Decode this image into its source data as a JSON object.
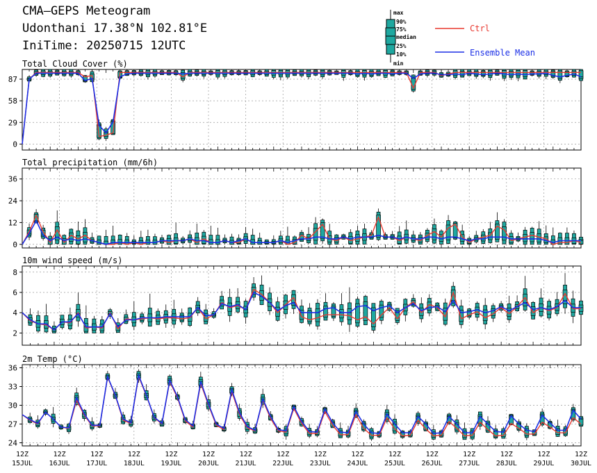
{
  "header": {
    "title": "CMA—GEPS Meteogram",
    "location": "Udonthani 17.38°N 102.81°E",
    "init_time": "IniTime: 20250715 12UTC"
  },
  "legend": {
    "box_labels": [
      "max",
      "90%",
      "75%",
      "median",
      "25%",
      "10%",
      "min"
    ],
    "ctrl": "Ctrl",
    "mean": "Ensemble Mean",
    "ctrl_color": "#e8382f",
    "mean_color": "#1a2ee6",
    "box_color": "#1fa8a0"
  },
  "x_axis": {
    "hour_labels": [
      "12Z",
      "12Z",
      "12Z",
      "12Z",
      "12Z",
      "12Z",
      "12Z",
      "12Z",
      "12Z",
      "12Z",
      "12Z",
      "12Z",
      "12Z",
      "12Z",
      "12Z",
      "12Z"
    ],
    "day_labels": [
      "15JUL",
      "16JUL",
      "17JUL",
      "18JUL",
      "19JUL",
      "20JUL",
      "21JUL",
      "22JUL",
      "23JUL",
      "24JUL",
      "25JUL",
      "26JUL",
      "27JUL",
      "28JUL",
      "29JUL",
      "30JUL"
    ]
  },
  "chart_data": [
    {
      "type": "box",
      "title": "Total Cloud Cover (%)",
      "ylim": [
        -8,
        100
      ],
      "yticks": [
        0,
        29,
        58,
        87
      ],
      "x_start": "2025-07-15 12Z",
      "x_step": "6h",
      "ctrl": [
        0,
        87,
        96,
        96,
        96,
        96,
        96,
        96,
        96,
        90,
        92,
        10,
        12,
        15,
        96,
        96,
        96,
        96,
        96,
        96,
        96,
        96,
        96,
        90,
        96,
        96,
        96,
        96,
        96,
        96,
        96,
        96,
        96,
        96,
        96,
        96,
        96,
        96,
        96,
        96,
        96,
        96,
        96,
        96,
        96,
        96,
        96,
        96,
        96,
        96,
        96,
        96,
        96,
        96,
        96,
        96,
        75,
        96,
        96,
        96,
        92,
        94,
        96,
        96,
        96,
        96,
        96,
        96,
        96,
        96,
        96,
        96,
        96,
        96,
        96,
        96,
        96,
        96,
        96,
        96,
        96
      ],
      "mean": [
        0,
        87,
        95,
        95,
        95,
        95,
        95,
        95,
        95,
        85,
        88,
        25,
        15,
        30,
        90,
        94,
        95,
        95,
        95,
        95,
        95,
        95,
        95,
        94,
        95,
        95,
        95,
        95,
        95,
        95,
        95,
        95,
        95,
        95,
        95,
        95,
        95,
        95,
        95,
        95,
        95,
        95,
        95,
        95,
        95,
        95,
        95,
        95,
        94,
        95,
        94,
        95,
        95,
        94,
        95,
        95,
        88,
        94,
        95,
        95,
        93,
        93,
        94,
        93,
        95,
        94,
        93,
        94,
        95,
        94,
        93,
        94,
        93,
        94,
        94,
        95,
        92,
        90,
        92,
        94,
        90
      ]
    },
    {
      "type": "box",
      "title": "Total precipitation (mm/6h)",
      "ylim": [
        -2,
        42
      ],
      "yticks": [
        0,
        12,
        24,
        36
      ],
      "x_start": "2025-07-15 12Z",
      "x_step": "6h",
      "ctrl": [
        0,
        7,
        16,
        7,
        1,
        8,
        1,
        5,
        3,
        5,
        2,
        1,
        0,
        0,
        1,
        0,
        1,
        0,
        1,
        1,
        2,
        1,
        2,
        2,
        3,
        1,
        3,
        1,
        1,
        2,
        1,
        1,
        3,
        1,
        1,
        1,
        1,
        2,
        0,
        1,
        5,
        3,
        7,
        11,
        3,
        2,
        4,
        2,
        3,
        4,
        5,
        15,
        4,
        4,
        2,
        4,
        3,
        2,
        5,
        7,
        4,
        9,
        11,
        4,
        1,
        3,
        4,
        5,
        10,
        8,
        2,
        3,
        4,
        5,
        4,
        3,
        0,
        1,
        1,
        2,
        1
      ],
      "mean": [
        0,
        6,
        13,
        5,
        2,
        4,
        2,
        3,
        2,
        3,
        2,
        1,
        0,
        1,
        1,
        1,
        1,
        1,
        1,
        1,
        2,
        2,
        2,
        2,
        3,
        2,
        2,
        1,
        1,
        2,
        1,
        2,
        3,
        1,
        1,
        1,
        1,
        2,
        1,
        2,
        3,
        3,
        4,
        4,
        3,
        3,
        4,
        3,
        4,
        4,
        4,
        5,
        4,
        4,
        3,
        4,
        3,
        3,
        4,
        4,
        3,
        4,
        4,
        3,
        2,
        3,
        3,
        4,
        4,
        4,
        3,
        3,
        3,
        3,
        3,
        2,
        1,
        2,
        2,
        2,
        2
      ]
    },
    {
      "type": "box",
      "title": "10m wind speed (m/s)",
      "ylim": [
        0.8,
        8.6
      ],
      "yticks": [
        2,
        4,
        6,
        8
      ],
      "x_start": "2025-07-15 12Z",
      "x_step": "6h",
      "ctrl": [
        4.0,
        3.2,
        2.9,
        2.8,
        2.3,
        3.1,
        3.0,
        4.0,
        2.5,
        2.6,
        2.5,
        4.0,
        2.4,
        3.4,
        3.3,
        3.4,
        3.5,
        3.4,
        3.5,
        3.5,
        3.4,
        3.5,
        4.5,
        3.4,
        3.8,
        5.0,
        4.5,
        4.7,
        4.3,
        6.3,
        5.8,
        5.0,
        4.0,
        4.8,
        5.5,
        3.6,
        3.3,
        3.5,
        3.8,
        3.8,
        3.8,
        3.7,
        3.3,
        3.6,
        2.9,
        3.8,
        4.5,
        3.4,
        4.5,
        5.1,
        4.0,
        4.8,
        4.5,
        3.6,
        6.0,
        3.4,
        3.8,
        4.1,
        3.5,
        3.9,
        4.5,
        3.9,
        4.6,
        5.5,
        4.0,
        4.5,
        4.2,
        4.5,
        5.9,
        4.4,
        4.4
      ],
      "mean": [
        4.0,
        3.3,
        2.9,
        2.9,
        2.3,
        3.1,
        3.1,
        3.9,
        2.6,
        2.6,
        2.6,
        3.9,
        2.6,
        3.3,
        3.3,
        3.5,
        3.5,
        3.5,
        3.6,
        3.6,
        3.6,
        3.6,
        4.5,
        3.7,
        3.8,
        4.9,
        4.6,
        4.8,
        4.3,
        6.0,
        5.6,
        5.0,
        4.2,
        4.7,
        5.0,
        4.0,
        4.0,
        4.0,
        4.4,
        4.5,
        4.0,
        4.0,
        4.6,
        4.7,
        4.2,
        4.5,
        4.7,
        4.0,
        4.5,
        4.9,
        4.2,
        4.5,
        4.6,
        4.1,
        5.2,
        4.0,
        4.1,
        4.3,
        4.0,
        4.2,
        4.6,
        4.2,
        4.6,
        5.0,
        4.3,
        4.5,
        4.3,
        4.6,
        5.2,
        4.5,
        4.5
      ]
    },
    {
      "type": "box",
      "title": "2m Temp (°C)",
      "ylim": [
        23.5,
        36.5
      ],
      "yticks": [
        24,
        27,
        30,
        33,
        36
      ],
      "x_start": "2025-07-15 12Z",
      "x_step": "6h",
      "ctrl": [
        28.5,
        27.6,
        27.0,
        28.9,
        27.8,
        26.5,
        26.3,
        30.8,
        28.4,
        26.7,
        26.7,
        34.5,
        31.5,
        27.6,
        27.1,
        34.6,
        31.5,
        28.0,
        27.0,
        33.8,
        31.2,
        27.5,
        26.5,
        33.5,
        30.0,
        26.8,
        26.1,
        32.2,
        28.5,
        26.4,
        25.9,
        30.8,
        27.9,
        25.9,
        25.7,
        29.5,
        27.1,
        25.5,
        25.5,
        29.0,
        26.8,
        25.3,
        25.3,
        28.5,
        26.3,
        25.2,
        25.2,
        28.0,
        26.2,
        25.1,
        25.2,
        27.6,
        26.2,
        25.1,
        25.2,
        27.4,
        26.3,
        25.1,
        25.2,
        27.3,
        26.1,
        25.1,
        25.2,
        27.1,
        26.3,
        25.4,
        25.4,
        27.3,
        26.5,
        25.6,
        25.6,
        28.0,
        27.0
      ],
      "mean": [
        28.5,
        27.7,
        27.1,
        28.9,
        27.8,
        26.5,
        26.4,
        31.2,
        28.6,
        26.8,
        26.8,
        34.6,
        31.6,
        27.8,
        27.2,
        34.8,
        31.6,
        28.1,
        27.1,
        34.0,
        31.4,
        27.7,
        26.7,
        33.8,
        30.2,
        27.0,
        26.3,
        32.5,
        28.8,
        26.6,
        26.0,
        31.0,
        28.2,
        26.1,
        25.9,
        29.8,
        27.4,
        25.8,
        25.7,
        29.4,
        27.2,
        25.7,
        25.6,
        29.0,
        27.0,
        25.6,
        25.5,
        28.6,
        27.0,
        25.6,
        25.6,
        28.2,
        27.0,
        25.5,
        25.6,
        28.2,
        27.0,
        25.6,
        25.6,
        28.2,
        27.0,
        25.8,
        25.7,
        28.3,
        27.0,
        26.0,
        25.8,
        28.4,
        27.2,
        26.0,
        26.0,
        29.2,
        27.8
      ]
    }
  ]
}
